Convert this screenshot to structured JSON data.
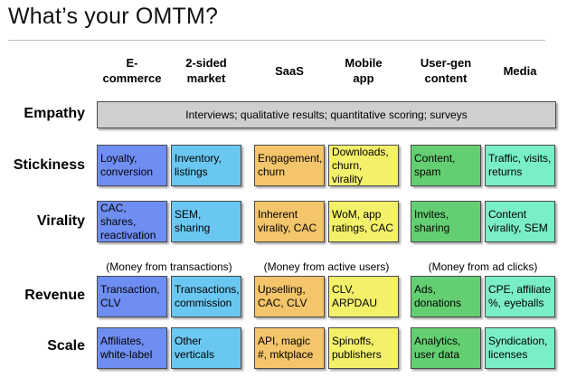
{
  "title": "What’s your OMTM?",
  "colors": {
    "ecommerce": "#6f8ef2",
    "twosided": "#6ac7f1",
    "saas": "#f4c56a",
    "mobile": "#f3f06a",
    "usergen": "#64cf72",
    "media": "#79eec7",
    "empathy": "#cfcfcf"
  },
  "columns": [
    {
      "label": "E-\ncommerce"
    },
    {
      "label": "2-sided\nmarket"
    },
    {
      "label": "SaaS"
    },
    {
      "label": "Mobile\napp"
    },
    {
      "label": "User-gen\ncontent"
    },
    {
      "label": "Media"
    }
  ],
  "rows": {
    "empathy": "Empathy",
    "stickiness": "Stickiness",
    "virality": "Virality",
    "revenue": "Revenue",
    "scale": "Scale"
  },
  "empathy_text": "Interviews; qualitative results; quantitative scoring; surveys",
  "notes": {
    "transactions": "(Money from transactions)",
    "active_users": "(Money from active users)",
    "ad_clicks": "(Money from ad clicks)"
  },
  "cells": {
    "stickiness": [
      "Loyalty,\nconversion",
      "Inventory,\nlistings",
      "Engagement,\nchurn",
      "Downloads,\nchurn, virality",
      "Content,\nspam",
      "Traffic, visits,\nreturns"
    ],
    "virality": [
      "CAC, shares,\nreactivation",
      "SEM, sharing",
      "Inherent\nvirality, CAC",
      "WoM, app\nratings, CAC",
      "Invites,\nsharing",
      "Content\nvirality, SEM"
    ],
    "revenue": [
      "Transaction,\nCLV",
      "Transactions,\ncommission",
      "Upselling,\nCAC, CLV",
      "CLV,\nARPDAU",
      "Ads,\ndonations",
      "CPE, affiliate\n%, eyeballs"
    ],
    "scale": [
      "Affiliates,\nwhite-label",
      "Other\nverticals",
      "API, magic\n#, mktplace",
      "Spinoffs,\npublishers",
      "Analytics,\nuser data",
      "Syndication,\nlicenses"
    ]
  }
}
